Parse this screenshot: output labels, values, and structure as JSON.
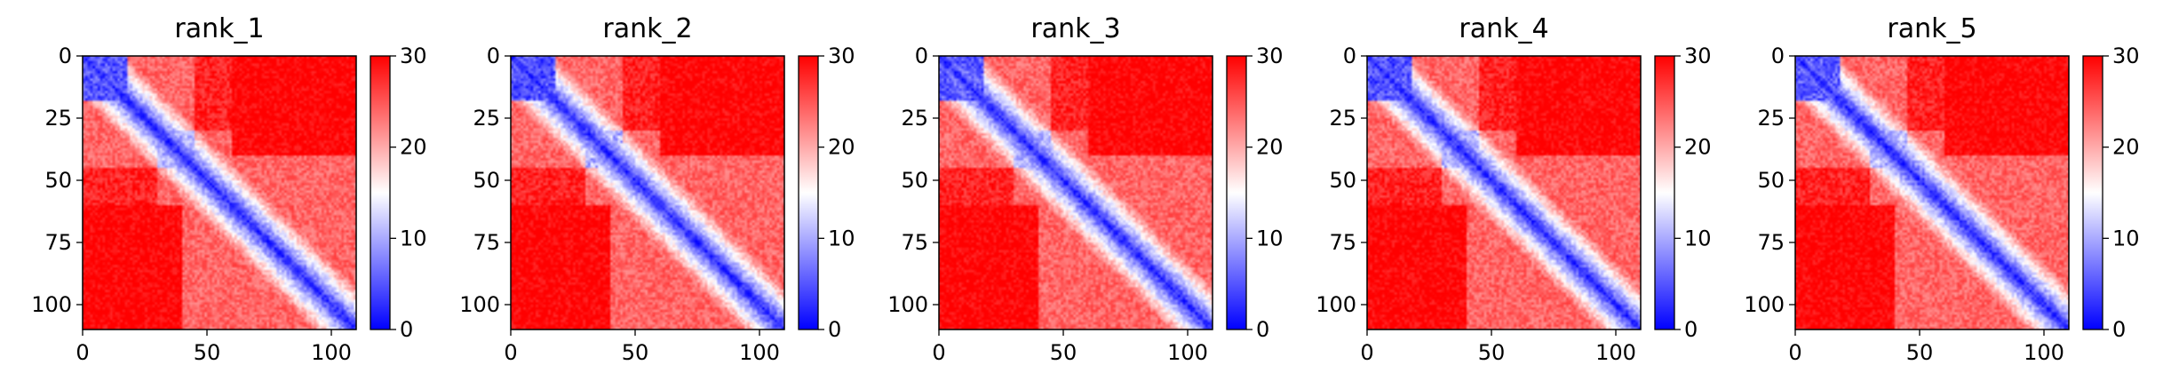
{
  "chart_data": [
    {
      "type": "heatmap",
      "title": "rank_1",
      "xlabel": "",
      "ylabel": "",
      "matrix_size": 110,
      "xlim": [
        0,
        110
      ],
      "ylim": [
        110,
        0
      ],
      "x_ticks": [
        "0",
        "50",
        "100"
      ],
      "y_ticks": [
        "0",
        "25",
        "50",
        "75",
        "100"
      ],
      "colorbar": {
        "colormap": "bwr",
        "range": [
          0,
          30
        ],
        "ticks": [
          "0",
          "10",
          "20",
          "30"
        ],
        "low_color": "#0000ff",
        "mid_color": "#ffffff",
        "high_color": "#ff0000"
      },
      "diagonal_band_width": 3,
      "low_blocks": [
        {
          "rows": [
            0,
            18
          ],
          "cols": [
            0,
            18
          ],
          "value": 5
        },
        {
          "rows": [
            30,
            45
          ],
          "cols": [
            30,
            45
          ],
          "value": 11
        }
      ],
      "high_blocks": [
        {
          "rows": [
            60,
            110
          ],
          "cols": [
            0,
            40
          ],
          "value": 30
        },
        {
          "rows": [
            0,
            30
          ],
          "cols": [
            45,
            110
          ],
          "value": 28
        }
      ]
    },
    {
      "type": "heatmap",
      "title": "rank_2",
      "xlabel": "",
      "ylabel": "",
      "matrix_size": 110,
      "xlim": [
        0,
        110
      ],
      "ylim": [
        110,
        0
      ],
      "x_ticks": [
        "0",
        "50",
        "100"
      ],
      "y_ticks": [
        "0",
        "25",
        "50",
        "75",
        "100"
      ],
      "colorbar": {
        "colormap": "bwr",
        "range": [
          0,
          30
        ],
        "ticks": [
          "0",
          "10",
          "20",
          "30"
        ],
        "low_color": "#0000ff",
        "mid_color": "#ffffff",
        "high_color": "#ff0000"
      },
      "diagonal_band_width": 3,
      "low_blocks": [
        {
          "rows": [
            0,
            18
          ],
          "cols": [
            0,
            18
          ],
          "value": 5
        },
        {
          "rows": [
            30,
            45
          ],
          "cols": [
            30,
            45
          ],
          "value": 11
        }
      ],
      "high_blocks": [
        {
          "rows": [
            60,
            110
          ],
          "cols": [
            0,
            40
          ],
          "value": 30
        },
        {
          "rows": [
            0,
            30
          ],
          "cols": [
            45,
            110
          ],
          "value": 28
        }
      ]
    },
    {
      "type": "heatmap",
      "title": "rank_3",
      "xlabel": "",
      "ylabel": "",
      "matrix_size": 110,
      "xlim": [
        0,
        110
      ],
      "ylim": [
        110,
        0
      ],
      "x_ticks": [
        "0",
        "50",
        "100"
      ],
      "y_ticks": [
        "0",
        "25",
        "50",
        "75",
        "100"
      ],
      "colorbar": {
        "colormap": "bwr",
        "range": [
          0,
          30
        ],
        "ticks": [
          "0",
          "10",
          "20",
          "30"
        ],
        "low_color": "#0000ff",
        "mid_color": "#ffffff",
        "high_color": "#ff0000"
      },
      "diagonal_band_width": 3,
      "low_blocks": [
        {
          "rows": [
            0,
            18
          ],
          "cols": [
            0,
            18
          ],
          "value": 5
        },
        {
          "rows": [
            30,
            45
          ],
          "cols": [
            30,
            45
          ],
          "value": 11
        }
      ],
      "high_blocks": [
        {
          "rows": [
            60,
            110
          ],
          "cols": [
            0,
            40
          ],
          "value": 30
        },
        {
          "rows": [
            0,
            30
          ],
          "cols": [
            45,
            110
          ],
          "value": 28
        }
      ]
    },
    {
      "type": "heatmap",
      "title": "rank_4",
      "xlabel": "",
      "ylabel": "",
      "matrix_size": 110,
      "xlim": [
        0,
        110
      ],
      "ylim": [
        110,
        0
      ],
      "x_ticks": [
        "0",
        "50",
        "100"
      ],
      "y_ticks": [
        "0",
        "25",
        "50",
        "75",
        "100"
      ],
      "colorbar": {
        "colormap": "bwr",
        "range": [
          0,
          30
        ],
        "ticks": [
          "0",
          "10",
          "20",
          "30"
        ],
        "low_color": "#0000ff",
        "mid_color": "#ffffff",
        "high_color": "#ff0000"
      },
      "diagonal_band_width": 3,
      "low_blocks": [
        {
          "rows": [
            0,
            18
          ],
          "cols": [
            0,
            18
          ],
          "value": 5
        },
        {
          "rows": [
            30,
            45
          ],
          "cols": [
            30,
            45
          ],
          "value": 11
        }
      ],
      "high_blocks": [
        {
          "rows": [
            60,
            110
          ],
          "cols": [
            0,
            40
          ],
          "value": 30
        },
        {
          "rows": [
            0,
            30
          ],
          "cols": [
            45,
            110
          ],
          "value": 28
        }
      ]
    },
    {
      "type": "heatmap",
      "title": "rank_5",
      "xlabel": "",
      "ylabel": "",
      "matrix_size": 110,
      "xlim": [
        0,
        110
      ],
      "ylim": [
        110,
        0
      ],
      "x_ticks": [
        "0",
        "50",
        "100"
      ],
      "y_ticks": [
        "0",
        "25",
        "50",
        "75",
        "100"
      ],
      "colorbar": {
        "colormap": "bwr",
        "range": [
          0,
          30
        ],
        "ticks": [
          "0",
          "10",
          "20",
          "30"
        ],
        "low_color": "#0000ff",
        "mid_color": "#ffffff",
        "high_color": "#ff0000"
      },
      "diagonal_band_width": 3,
      "low_blocks": [
        {
          "rows": [
            0,
            18
          ],
          "cols": [
            0,
            18
          ],
          "value": 5
        },
        {
          "rows": [
            30,
            45
          ],
          "cols": [
            30,
            45
          ],
          "value": 11
        }
      ],
      "high_blocks": [
        {
          "rows": [
            60,
            110
          ],
          "cols": [
            0,
            40
          ],
          "value": 30
        },
        {
          "rows": [
            0,
            30
          ],
          "cols": [
            45,
            110
          ],
          "value": 28
        }
      ]
    }
  ]
}
